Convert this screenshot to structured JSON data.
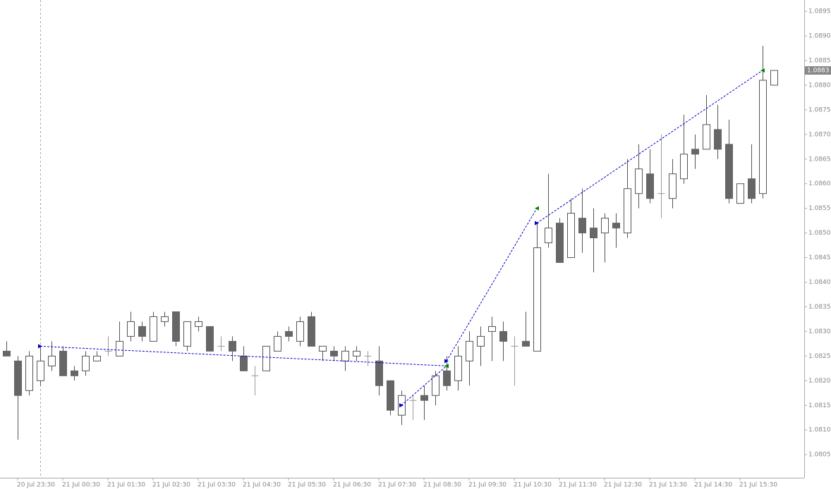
{
  "chart_data": {
    "type": "candlestick",
    "categories": [
      null,
      "20 Jul 23:30",
      null,
      null,
      null,
      "21 Jul 00:30",
      null,
      null,
      null,
      "21 Jul 01:30",
      null,
      null,
      null,
      "21 Jul 02:30",
      null,
      null,
      null,
      "21 Jul 03:30",
      null,
      null,
      null,
      "21 Jul 04:30",
      null,
      null,
      null,
      "21 Jul 05:30",
      null,
      null,
      null,
      "21 Jul 06:30",
      null,
      null,
      null,
      "21 Jul 07:30",
      null,
      null,
      null,
      "21 Jul 08:30",
      null,
      null,
      null,
      "21 Jul 09:30",
      null,
      null,
      null,
      "21 Jul 10:30",
      null,
      null,
      null,
      "21 Jul 11:30",
      null,
      null,
      null,
      "21 Jul 12:30",
      null,
      null,
      null,
      "21 Jul 13:30",
      null,
      null,
      null,
      "21 Jul 14:30",
      null,
      null,
      null,
      "21 Jul 15:30",
      null,
      null,
      null
    ],
    "open": [
      1.0826,
      1.0824,
      1.0818,
      1.082,
      1.0823,
      1.0826,
      1.0822,
      1.0822,
      1.0824,
      1.0826,
      1.0825,
      1.0829,
      1.0831,
      1.0828,
      1.0832,
      1.0834,
      1.0827,
      1.0831,
      1.0831,
      1.0827,
      1.0828,
      1.0825,
      1.0821,
      1.0822,
      1.0826,
      1.083,
      1.0828,
      1.0833,
      1.0826,
      1.0826,
      1.0824,
      1.0825,
      1.0825,
      1.0824,
      1.082,
      1.0813,
      1.0816,
      1.0817,
      1.0817,
      1.0822,
      1.082,
      1.0824,
      1.0827,
      1.083,
      1.083,
      1.0827,
      1.0828,
      1.0826,
      1.0848,
      1.0852,
      1.0845,
      1.0853,
      1.0851,
      1.085,
      1.0852,
      1.085,
      1.0858,
      1.0862,
      1.0858,
      1.0857,
      1.0861,
      1.0867,
      1.0867,
      1.0871,
      1.0868,
      1.0856,
      1.0861,
      1.0858,
      1.088
    ],
    "high": [
      1.0828,
      1.0825,
      1.0826,
      1.0827,
      1.0828,
      1.0827,
      1.0823,
      1.0826,
      1.0826,
      1.0829,
      1.0832,
      1.0834,
      1.0832,
      1.0834,
      1.0834,
      1.0834,
      1.0832,
      1.0833,
      1.0831,
      1.0829,
      1.0829,
      1.0827,
      1.0823,
      1.0827,
      1.083,
      1.0831,
      1.0833,
      1.0834,
      1.0827,
      1.0827,
      1.0827,
      1.0827,
      1.0826,
      1.0827,
      1.082,
      1.0818,
      1.0817,
      1.0819,
      1.0822,
      1.0825,
      1.0827,
      1.083,
      1.0831,
      1.0833,
      1.0832,
      1.0829,
      1.0834,
      1.0852,
      1.0862,
      1.0853,
      1.0857,
      1.0859,
      1.0855,
      1.0854,
      1.0854,
      1.0865,
      1.0868,
      1.0867,
      1.087,
      1.0865,
      1.0874,
      1.087,
      1.0878,
      1.0876,
      1.0873,
      1.086,
      1.0868,
      1.0888,
      1.0883
    ],
    "low": [
      1.0825,
      1.0808,
      1.0817,
      1.0819,
      1.0822,
      1.0821,
      1.082,
      1.0821,
      1.0824,
      1.0825,
      1.0825,
      1.0828,
      1.0828,
      1.0828,
      1.0831,
      1.0827,
      1.0826,
      1.083,
      1.0826,
      1.0826,
      1.0824,
      1.0822,
      1.0817,
      1.0822,
      1.0826,
      1.0828,
      1.0827,
      1.0827,
      1.0824,
      1.0824,
      1.0822,
      1.0824,
      1.0823,
      1.0817,
      1.0813,
      1.0811,
      1.0812,
      1.0812,
      1.0815,
      1.0818,
      1.0818,
      1.0819,
      1.0823,
      1.0824,
      1.0824,
      1.0819,
      1.0827,
      1.0826,
      1.0847,
      1.0844,
      1.0845,
      1.0846,
      1.0842,
      1.0844,
      1.0847,
      1.0849,
      1.0855,
      1.0856,
      1.0853,
      1.0855,
      1.086,
      1.0863,
      1.0867,
      1.0865,
      1.0856,
      1.0856,
      1.0856,
      1.0857,
      1.088
    ],
    "close": [
      1.0825,
      1.0817,
      1.0825,
      1.0824,
      1.0825,
      1.0821,
      1.0821,
      1.0825,
      1.0825,
      1.0826,
      1.0828,
      1.0832,
      1.0829,
      1.0833,
      1.0833,
      1.0828,
      1.0832,
      1.0832,
      1.0826,
      1.0827,
      1.0826,
      1.0822,
      1.0821,
      1.0827,
      1.0829,
      1.0829,
      1.0832,
      1.0827,
      1.0827,
      1.0825,
      1.0826,
      1.0826,
      1.0825,
      1.0819,
      1.0814,
      1.0817,
      1.0816,
      1.0816,
      1.0821,
      1.0819,
      1.0825,
      1.0828,
      1.0829,
      1.0831,
      1.0828,
      1.0827,
      1.0827,
      1.0847,
      1.0851,
      1.0844,
      1.0854,
      1.085,
      1.0849,
      1.0853,
      1.0851,
      1.0859,
      1.0863,
      1.0857,
      1.0858,
      1.0862,
      1.0866,
      1.0866,
      1.0872,
      1.0867,
      1.0857,
      1.086,
      1.0857,
      1.0881,
      1.0883
    ],
    "bull_color": "#ffffff",
    "bear_color": "#666666",
    "outline_color": "#555555",
    "doji_color": "#999999",
    "trades": [
      {
        "entry_bar": 3,
        "entry_price": 1.0827,
        "exit_bar": 39,
        "exit_price": 1.0823
      },
      {
        "entry_bar": 35,
        "entry_price": 1.0815,
        "exit_bar": 39,
        "exit_price": 1.0823
      },
      {
        "entry_bar": 39,
        "entry_price": 1.0824,
        "exit_bar": 47,
        "exit_price": 1.0855
      },
      {
        "entry_bar": 47,
        "entry_price": 1.0852,
        "exit_bar": 67,
        "exit_price": 1.0883
      }
    ],
    "trade_color": "#0000cc",
    "entry_color": "#0000cc",
    "exit_color": "#008800",
    "ylim": [
      1.08003,
      1.08973
    ],
    "yticks": [
      1.0805,
      {
        "value": 1.081,
        "label": "1.0810"
      },
      1.0815,
      {
        "value": 1.082,
        "label": "1.0820"
      },
      1.0825,
      {
        "value": 1.083,
        "label": "1.0830"
      },
      1.0835,
      {
        "value": 1.084,
        "label": "1.0840"
      },
      1.0845,
      {
        "value": 1.085,
        "label": "1.0850"
      },
      1.0855,
      {
        "value": 1.086,
        "label": "1.0860"
      },
      1.0865,
      {
        "value": 1.087,
        "label": "1.0870"
      },
      1.0875,
      {
        "value": 1.088,
        "label": "1.0880"
      },
      1.0885,
      {
        "value": 1.089,
        "label": "1.0890"
      },
      1.0895
    ],
    "grid": false
  }
}
